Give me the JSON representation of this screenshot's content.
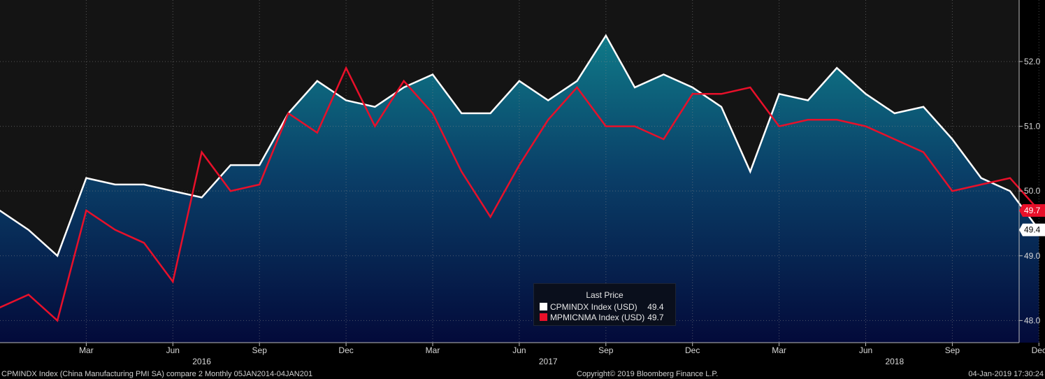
{
  "chart_data": {
    "type": "line",
    "x": [
      "Dec 2015",
      "Jan 2016",
      "Feb 2016",
      "Mar 2016",
      "Apr 2016",
      "May 2016",
      "Jun 2016",
      "Jul 2016",
      "Aug 2016",
      "Sep 2016",
      "Oct 2016",
      "Nov 2016",
      "Dec 2016",
      "Jan 2017",
      "Feb 2017",
      "Mar 2017",
      "Apr 2017",
      "May 2017",
      "Jun 2017",
      "Jul 2017",
      "Aug 2017",
      "Sep 2017",
      "Oct 2017",
      "Nov 2017",
      "Dec 2017",
      "Jan 2018",
      "Feb 2018",
      "Mar 2018",
      "Apr 2018",
      "May 2018",
      "Jun 2018",
      "Jul 2018",
      "Aug 2018",
      "Sep 2018",
      "Oct 2018",
      "Nov 2018",
      "Dec 2018"
    ],
    "series": [
      {
        "name": "CPMINDX Index (USD)",
        "color": "#ffffff",
        "style": "area-gradient-teal-to-navy",
        "values": [
          49.7,
          49.4,
          49.0,
          50.2,
          50.1,
          50.1,
          50.0,
          49.9,
          50.4,
          50.4,
          51.2,
          51.7,
          51.4,
          51.3,
          51.6,
          51.8,
          51.2,
          51.2,
          51.7,
          51.4,
          51.7,
          52.4,
          51.6,
          51.8,
          51.6,
          51.3,
          50.3,
          51.5,
          51.4,
          51.9,
          51.5,
          51.2,
          51.3,
          50.8,
          50.2,
          50.0,
          49.4
        ]
      },
      {
        "name": "MPMICNMA Index (USD)",
        "color": "#e8102a",
        "style": "line",
        "values": [
          48.2,
          48.4,
          48.0,
          49.7,
          49.4,
          49.2,
          48.6,
          50.6,
          50.0,
          50.1,
          51.2,
          50.9,
          51.9,
          51.0,
          51.7,
          51.2,
          50.3,
          49.6,
          50.4,
          51.1,
          51.6,
          51.0,
          51.0,
          50.8,
          51.5,
          51.5,
          51.6,
          51.0,
          51.1,
          51.1,
          51.0,
          50.8,
          50.6,
          50.0,
          50.1,
          50.2,
          49.7
        ]
      }
    ],
    "x_ticks": [
      {
        "index": 3,
        "label": "Mar"
      },
      {
        "index": 6,
        "label": "Jun"
      },
      {
        "index": 9,
        "label": "Sep"
      },
      {
        "index": 12,
        "label": "Dec"
      },
      {
        "index": 15,
        "label": "Mar"
      },
      {
        "index": 18,
        "label": "Jun"
      },
      {
        "index": 21,
        "label": "Sep"
      },
      {
        "index": 24,
        "label": "Dec"
      },
      {
        "index": 27,
        "label": "Mar"
      },
      {
        "index": 30,
        "label": "Jun"
      },
      {
        "index": 33,
        "label": "Sep"
      },
      {
        "index": 36,
        "label": "Dec"
      }
    ],
    "year_labels": [
      {
        "index": 7,
        "label": "2016"
      },
      {
        "index": 19,
        "label": "2017"
      },
      {
        "index": 31,
        "label": "2018"
      }
    ],
    "y_ticks": [
      48.0,
      49.0,
      50.0,
      51.0,
      52.0
    ],
    "y_tick_labels": [
      "48.0",
      "49.0",
      "50.0",
      "51.0",
      "52.0"
    ],
    "ylim": [
      47.55,
      52.95
    ],
    "y_axis_position": "right",
    "grid": true,
    "last_value_tags": [
      {
        "series": 1,
        "label": "49.7",
        "bg": "#e8102a",
        "fg": "#ffffff"
      },
      {
        "series": 0,
        "label": "49.4",
        "bg": "#ffffff",
        "fg": "#000000"
      }
    ],
    "legend": {
      "title": "Last Price",
      "placement": "bottom-center",
      "entries": [
        {
          "name": "CPMINDX Index (USD)",
          "value": "49.4",
          "color": "#ffffff"
        },
        {
          "name": "MPMICNMA Index (USD)",
          "value": "49.7",
          "color": "#e8102a"
        }
      ]
    }
  },
  "footer": {
    "left": "CPMINDX Index (China Manufacturing PMI SA) compare 2  Monthly 05JAN2014-04JAN201",
    "center": "Copyright© 2019 Bloomberg Finance L.P.",
    "right": "04-Jan-2019 17:30:24"
  }
}
